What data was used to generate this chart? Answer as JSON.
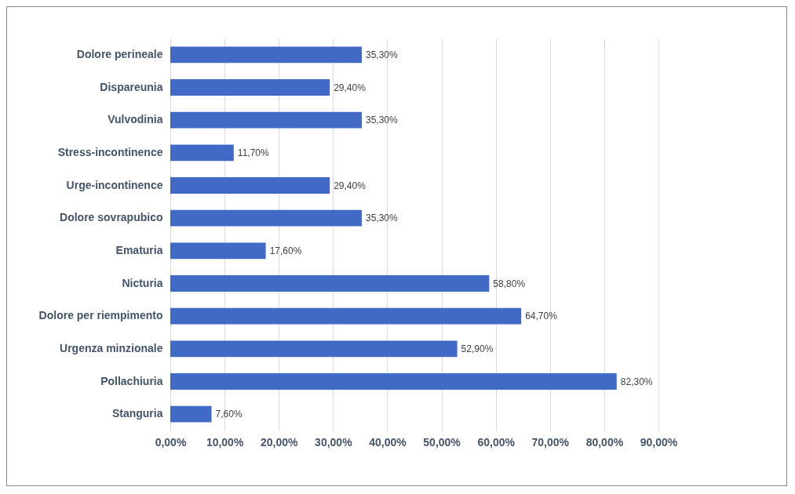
{
  "chart_data": {
    "type": "bar",
    "orientation": "horizontal",
    "categories": [
      "Dolore perineale",
      "Dispareunia",
      "Vulvodinia",
      "Stress-incontinence",
      "Urge-incontinence",
      "Dolore sovrapubico",
      "Ematuria",
      "Nicturia",
      "Dolore per riempimento",
      "Urgenza minzionale",
      "Pollachiuria",
      "Stanguria"
    ],
    "values": [
      35.3,
      29.4,
      35.3,
      11.7,
      29.4,
      35.3,
      17.6,
      58.8,
      64.7,
      52.9,
      82.3,
      7.6
    ],
    "value_labels": [
      "35,30%",
      "29,40%",
      "35,30%",
      "11,70%",
      "29,40%",
      "35,30%",
      "17,60%",
      "58,80%",
      "64,70%",
      "52,90%",
      "82,30%",
      "7,60%"
    ],
    "color": "#4169c6",
    "xlim": [
      0,
      90
    ],
    "xticks": [
      {
        "value": 0,
        "label": "0,00%"
      },
      {
        "value": 10,
        "label": "10,00%"
      },
      {
        "value": 20,
        "label": "20,00%"
      },
      {
        "value": 30,
        "label": "30,00%"
      },
      {
        "value": 40,
        "label": "40,00%"
      },
      {
        "value": 50,
        "label": "50,00%"
      },
      {
        "value": 60,
        "label": "60,00%"
      },
      {
        "value": 70,
        "label": "70,00%"
      },
      {
        "value": 80,
        "label": "80,00%"
      },
      {
        "value": 90,
        "label": "90,00%"
      }
    ],
    "grid": "x"
  }
}
